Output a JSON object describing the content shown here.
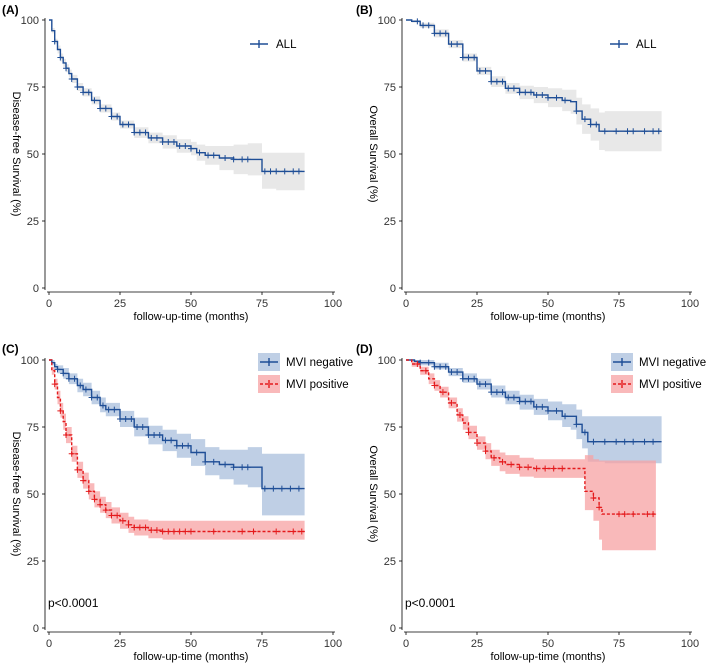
{
  "chart_data": [
    {
      "type": "line",
      "panel_label": "(A)",
      "xlabel": "follow-up-time (months)",
      "ylabel": "Disease-free Survival (%)",
      "xlim": [
        0,
        100
      ],
      "ylim": [
        0,
        100
      ],
      "xticks": [
        "0",
        "25",
        "50",
        "75",
        "100"
      ],
      "yticks": [
        "0",
        "25",
        "50",
        "75",
        "100"
      ],
      "legend": [
        "ALL"
      ],
      "pvalue": null,
      "series": [
        {
          "name": "ALL",
          "color": "#1f4e96",
          "band_color": "#d9d9d9",
          "dashed": false,
          "x": [
            0,
            1,
            2,
            3,
            4,
            5,
            6,
            7,
            8,
            10,
            12,
            15,
            18,
            22,
            25,
            30,
            35,
            40,
            45,
            50,
            52,
            55,
            60,
            65,
            70,
            74,
            75,
            80,
            90
          ],
          "y": [
            100,
            96,
            92,
            89,
            86,
            84,
            82,
            80,
            78,
            75,
            73,
            70,
            67,
            64,
            61,
            58,
            56,
            54.5,
            53,
            52,
            50.5,
            49.5,
            48.5,
            48,
            48,
            48,
            43.5,
            43.5,
            43.5
          ],
          "lower": [
            100,
            95,
            91,
            87.5,
            84.5,
            82.5,
            80.5,
            78.5,
            76.5,
            73.5,
            71.5,
            68.5,
            65.5,
            62.5,
            59.5,
            56,
            54,
            52,
            50.5,
            49.5,
            47.5,
            46,
            44,
            42.5,
            42,
            42,
            37,
            36.5,
            36.5
          ],
          "upper": [
            100,
            97,
            93,
            90.5,
            87.5,
            85.5,
            83.5,
            81.5,
            79.5,
            76.5,
            74.5,
            71.5,
            68.5,
            65.5,
            62.5,
            60,
            58,
            57,
            55.5,
            54.5,
            53.5,
            53,
            53,
            53.5,
            54,
            54,
            50.5,
            50.5,
            50.5
          ],
          "censor_x": [
            2,
            4,
            6,
            8,
            10,
            12,
            14,
            16,
            18,
            20,
            22,
            24,
            26,
            28,
            30,
            32,
            34,
            36,
            38,
            40,
            42,
            44,
            46,
            48,
            50,
            53,
            56,
            58,
            62,
            65,
            68,
            70,
            76,
            78,
            80,
            83,
            86,
            88
          ]
        }
      ]
    },
    {
      "type": "line",
      "panel_label": "(B)",
      "xlabel": "follow-up-time (months)",
      "ylabel": "Overall Survival (%)",
      "xlim": [
        0,
        100
      ],
      "ylim": [
        0,
        100
      ],
      "xticks": [
        "0",
        "25",
        "50",
        "75",
        "100"
      ],
      "yticks": [
        "0",
        "25",
        "50",
        "75",
        "100"
      ],
      "legend": [
        "ALL"
      ],
      "pvalue": null,
      "series": [
        {
          "name": "ALL",
          "color": "#1f4e96",
          "band_color": "#d9d9d9",
          "dashed": false,
          "x": [
            0,
            2,
            5,
            10,
            15,
            20,
            25,
            30,
            35,
            40,
            45,
            50,
            55,
            58,
            60,
            62,
            65,
            68,
            70,
            80,
            90
          ],
          "y": [
            100,
            99.5,
            98,
            95,
            91,
            86,
            81,
            77,
            74.5,
            73,
            72,
            71,
            70,
            69.5,
            66,
            63,
            61,
            58.5,
            58.5,
            58.5,
            58.5
          ],
          "lower": [
            100,
            99,
            97,
            93.5,
            89.5,
            84.5,
            79.5,
            75,
            72.5,
            70.5,
            69,
            67.5,
            66,
            65,
            61,
            57.5,
            55,
            51.5,
            51,
            51,
            51
          ],
          "upper": [
            100,
            100,
            99,
            96.5,
            92.5,
            87.5,
            82.5,
            79,
            76.5,
            75.5,
            75,
            74.5,
            74,
            74,
            71,
            68.5,
            67,
            65.5,
            66,
            66,
            66
          ],
          "censor_x": [
            4,
            6,
            8,
            10,
            12,
            14,
            16,
            18,
            20,
            22,
            24,
            26,
            28,
            30,
            32,
            34,
            36,
            38,
            40,
            42,
            44,
            46,
            48,
            50,
            53,
            56,
            60,
            63,
            65,
            67,
            70,
            74,
            78,
            80,
            84,
            87,
            89
          ]
        }
      ]
    },
    {
      "type": "line",
      "panel_label": "(C)",
      "xlabel": "follow-up-time (months)",
      "ylabel": "Disease-free Survival (%)",
      "xlim": [
        0,
        100
      ],
      "ylim": [
        0,
        100
      ],
      "xticks": [
        "0",
        "25",
        "50",
        "75",
        "100"
      ],
      "yticks": [
        "0",
        "25",
        "50",
        "75",
        "100"
      ],
      "legend": [
        "MVI negative",
        "MVI positive"
      ],
      "pvalue": "p<0.0001",
      "series": [
        {
          "name": "MVI negative",
          "color": "#1f4e96",
          "band_color": "#a9bfdc",
          "dashed": false,
          "x": [
            0,
            1,
            2,
            3,
            5,
            7,
            10,
            12,
            15,
            18,
            20,
            25,
            30,
            35,
            40,
            45,
            50,
            55,
            60,
            65,
            70,
            74,
            75,
            80,
            90
          ],
          "y": [
            100,
            99,
            97.5,
            96.5,
            95,
            93,
            90.5,
            89,
            86,
            83,
            81.5,
            78,
            75,
            72,
            70,
            68,
            65.5,
            62,
            61,
            60,
            60,
            60,
            52,
            52,
            52
          ],
          "lower": [
            100,
            98,
            96.5,
            95,
            93,
            91,
            88,
            86.5,
            83.5,
            80.5,
            79,
            75,
            71.5,
            68.5,
            66,
            63.5,
            60.5,
            57,
            55.5,
            53.5,
            52.5,
            52.5,
            42,
            42,
            42
          ],
          "upper": [
            100,
            100,
            98.5,
            98,
            97,
            95,
            93,
            91.5,
            88.5,
            86,
            84,
            81,
            78.5,
            75.5,
            74,
            72.5,
            70.5,
            67.5,
            66.5,
            66.5,
            67.5,
            67.5,
            65,
            65,
            65
          ],
          "censor_x": [
            3,
            5,
            7,
            9,
            11,
            13,
            15,
            17,
            19,
            21,
            23,
            25,
            27,
            29,
            31,
            33,
            35,
            37,
            39,
            41,
            43,
            45,
            47,
            49,
            52,
            55,
            58,
            62,
            65,
            68,
            70,
            76,
            79,
            82,
            85,
            88
          ]
        },
        {
          "name": "MVI positive",
          "color": "#e41a1c",
          "band_color": "#f7a1a3",
          "dashed": true,
          "x": [
            0,
            1,
            2,
            3,
            4,
            5,
            6,
            8,
            10,
            12,
            14,
            16,
            18,
            20,
            22,
            25,
            28,
            30,
            35,
            40,
            45,
            50,
            60,
            70,
            80,
            90
          ],
          "y": [
            100,
            96,
            91,
            86,
            81,
            77,
            72,
            65,
            59,
            55,
            51,
            48,
            46,
            44,
            42,
            40,
            38.5,
            37.5,
            36.5,
            36,
            36,
            36,
            36,
            36,
            36,
            36
          ],
          "lower": [
            100,
            94.5,
            89,
            83.5,
            78.5,
            74,
            69,
            62,
            56,
            52,
            48,
            45,
            43,
            41,
            39,
            37,
            35.5,
            34.5,
            33.5,
            33,
            33,
            33,
            33,
            33,
            33,
            33
          ],
          "upper": [
            100,
            97.5,
            93,
            88.5,
            84,
            80,
            75,
            68,
            62,
            58,
            54,
            51,
            49,
            47,
            45,
            43,
            41.5,
            40.5,
            40,
            40,
            40,
            40,
            40,
            40,
            40,
            40
          ],
          "censor_x": [
            2,
            4,
            6,
            8,
            10,
            12,
            14,
            16,
            18,
            20,
            22,
            24,
            26,
            28,
            30,
            32,
            34,
            36,
            38,
            40,
            42,
            44,
            46,
            48,
            50,
            58,
            68,
            72,
            80,
            86,
            89
          ]
        }
      ]
    },
    {
      "type": "line",
      "panel_label": "(D)",
      "xlabel": "follow-up-time (months)",
      "ylabel": "Overall Survival (%)",
      "xlim": [
        0,
        100
      ],
      "ylim": [
        0,
        100
      ],
      "xticks": [
        "0",
        "25",
        "50",
        "75",
        "100"
      ],
      "yticks": [
        "0",
        "25",
        "50",
        "75",
        "100"
      ],
      "legend": [
        "MVI negative",
        "MVI positive"
      ],
      "pvalue": "p<0.0001",
      "series": [
        {
          "name": "MVI negative",
          "color": "#1f4e96",
          "band_color": "#a9bfdc",
          "dashed": false,
          "x": [
            0,
            3,
            5,
            10,
            15,
            20,
            25,
            30,
            35,
            40,
            45,
            50,
            55,
            58,
            60,
            62,
            64,
            70,
            80,
            90
          ],
          "y": [
            100,
            99.5,
            99,
            97.5,
            95.5,
            93,
            91,
            88,
            86,
            84.5,
            82.5,
            81,
            79,
            79,
            76,
            73,
            69.5,
            69.5,
            69.5,
            69.5
          ],
          "lower": [
            100,
            99,
            98,
            96.5,
            94,
            91.5,
            89,
            86,
            83.5,
            81.5,
            79.5,
            77.5,
            75,
            74,
            70.5,
            67,
            62,
            61.5,
            61.5,
            61.5
          ],
          "upper": [
            100,
            100,
            100,
            99,
            97,
            95,
            93,
            90.5,
            88.5,
            87,
            85.5,
            84.5,
            83.5,
            83.5,
            81.5,
            79,
            79,
            79,
            79,
            79
          ],
          "censor_x": [
            5,
            8,
            10,
            12,
            14,
            16,
            18,
            20,
            22,
            24,
            26,
            28,
            30,
            32,
            34,
            36,
            38,
            40,
            42,
            44,
            46,
            48,
            50,
            53,
            56,
            60,
            63,
            66,
            70,
            74,
            77,
            80,
            84,
            87
          ]
        },
        {
          "name": "MVI positive",
          "color": "#e41a1c",
          "band_color": "#f7a1a3",
          "dashed": true,
          "x": [
            0,
            2,
            5,
            8,
            10,
            12,
            15,
            18,
            20,
            22,
            25,
            28,
            30,
            33,
            35,
            40,
            45,
            50,
            55,
            60,
            63,
            66,
            68,
            69,
            70,
            80,
            88
          ],
          "y": [
            100,
            98.5,
            96,
            93,
            90.5,
            88,
            84,
            79.5,
            76.5,
            73,
            69,
            66,
            63.5,
            62,
            61,
            60,
            59.5,
            59.5,
            59.5,
            59.5,
            51,
            48.5,
            45,
            42.5,
            42.5,
            42.5,
            42.5
          ],
          "lower": [
            100,
            97.5,
            94.5,
            91,
            88.5,
            86,
            82,
            77,
            74,
            70.5,
            66.5,
            63,
            60.5,
            58.5,
            57.5,
            56.5,
            56,
            56,
            56,
            56,
            44,
            40,
            33,
            29,
            29,
            29,
            29
          ],
          "upper": [
            100,
            99.5,
            97.5,
            95,
            92.5,
            90,
            86,
            82,
            79,
            75.5,
            71.5,
            69,
            66.5,
            65.5,
            64.5,
            63.5,
            63,
            63,
            63,
            63,
            64.5,
            63,
            62.5,
            62.5,
            62.5,
            62.5,
            62.5
          ],
          "censor_x": [
            4,
            7,
            10,
            13,
            16,
            19,
            22,
            25,
            28,
            31,
            34,
            37,
            40,
            43,
            46,
            49,
            52,
            55,
            66,
            68,
            75,
            77,
            80,
            85,
            87
          ]
        }
      ]
    }
  ]
}
